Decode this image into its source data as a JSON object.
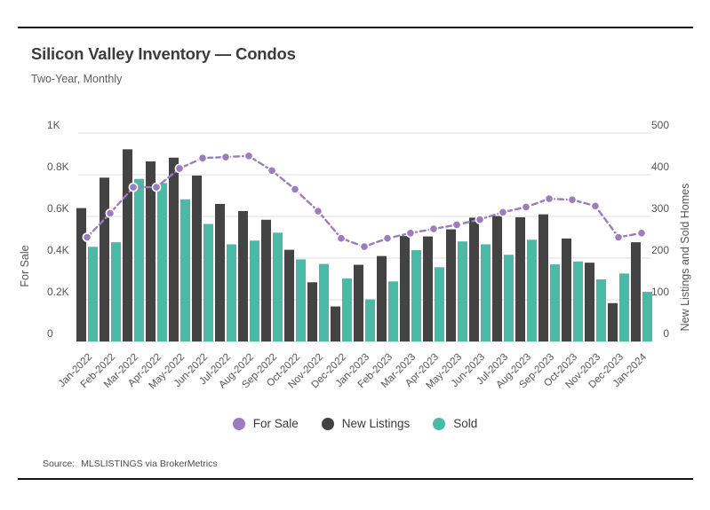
{
  "header": {
    "title": "Silicon Valley Inventory — Condos",
    "subtitle": "Two-Year, Monthly"
  },
  "footer": {
    "source_label": "Source:",
    "source_value": "MLSLISTINGS via BrokerMetrics"
  },
  "legend": [
    {
      "label": "For Sale",
      "color": "#9b7cbe"
    },
    {
      "label": "New Listings",
      "color": "#434343"
    },
    {
      "label": "Sold",
      "color": "#4ab9a6"
    }
  ],
  "colors": {
    "for_sale_line": "#9b7cbe",
    "new_listings_bar": "#434343",
    "sold_bar": "#4ab9a6",
    "gridline": "#dcdcdc",
    "tick_text": "#565656"
  },
  "chart_data": {
    "type": "bar",
    "subtype": "grouped bars with dashed line overlay (dual axis)",
    "title": "Silicon Valley Inventory — Condos",
    "subtitle": "Two-Year, Monthly",
    "grid": true,
    "legend_position": "bottom",
    "categories": [
      "Jan-2022",
      "Feb-2022",
      "Mar-2022",
      "Apr-2022",
      "May-2022",
      "Jun-2022",
      "Jul-2022",
      "Aug-2022",
      "Sep-2022",
      "Oct-2022",
      "Nov-2022",
      "Dec-2022",
      "Jan-2023",
      "Feb-2023",
      "Mar-2023",
      "Apr-2023",
      "May-2023",
      "Jun-2023",
      "Jul-2023",
      "Aug-2023",
      "Sep-2023",
      "Oct-2023",
      "Nov-2023",
      "Dec-2023",
      "Jan-2024"
    ],
    "left_axis": {
      "title": "For Sale",
      "min": 0,
      "max": 1000,
      "ticks": [
        "0",
        "0.2K",
        "0.4K",
        "0.6K",
        "0.8K",
        "1K"
      ]
    },
    "right_axis": {
      "title": "New Listings and Sold Homes",
      "min": 0,
      "max": 500,
      "ticks": [
        "0",
        "100",
        "200",
        "300",
        "400",
        "500"
      ]
    },
    "series": [
      {
        "name": "For Sale",
        "type": "line",
        "axis": "left",
        "color": "#9b7cbe",
        "values": [
          500,
          615,
          740,
          740,
          830,
          880,
          885,
          890,
          820,
          730,
          625,
          495,
          455,
          495,
          520,
          540,
          560,
          585,
          620,
          645,
          685,
          680,
          650,
          500,
          520
        ]
      },
      {
        "name": "New Listings",
        "type": "bar",
        "axis": "right",
        "color": "#434343",
        "values": [
          320,
          393,
          461,
          432,
          441,
          398,
          330,
          313,
          292,
          220,
          142,
          84,
          184,
          205,
          253,
          252,
          269,
          297,
          301,
          298,
          305,
          247,
          189,
          92,
          238
        ]
      },
      {
        "name": "Sold",
        "type": "bar",
        "axis": "right",
        "color": "#4ab9a6",
        "values": [
          227,
          238,
          390,
          380,
          341,
          282,
          233,
          242,
          261,
          197,
          186,
          151,
          101,
          144,
          219,
          178,
          240,
          233,
          208,
          244,
          185,
          192,
          149,
          163,
          119
        ]
      }
    ]
  }
}
